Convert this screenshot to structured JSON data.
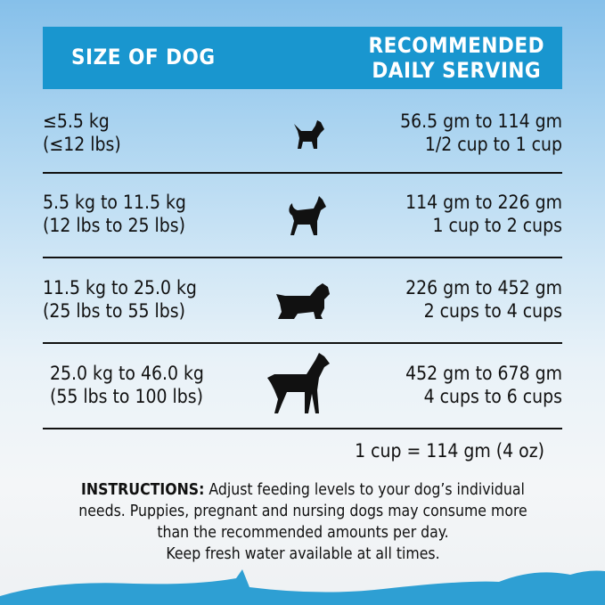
{
  "header": {
    "size_label": "SIZE OF DOG",
    "serving_line1": "RECOMMENDED",
    "serving_line2": "DAILY SERVING"
  },
  "rows": [
    {
      "kg": "≤5.5 kg",
      "lbs": "(≤12 lbs)",
      "grams": "56.5 gm to 114 gm",
      "cups": "1/2  cup to 1 cup",
      "icon": "small-terrier-dog-icon"
    },
    {
      "kg": "5.5 kg to 11.5 kg",
      "lbs": "(12 lbs to 25 lbs)",
      "grams": "114 gm to 226 gm",
      "cups": "1 cup to 2 cups",
      "icon": "husky-dog-icon"
    },
    {
      "kg": "11.5 kg to 25.0 kg",
      "lbs": "(25 lbs to 55 lbs)",
      "grams": "226 gm to 452 gm",
      "cups": "2 cups to 4 cups",
      "icon": "spaniel-dog-icon"
    },
    {
      "kg": "25.0 kg to 46.0 kg",
      "lbs": "(55 lbs to 100 lbs)",
      "grams": "452 gm to 678 gm",
      "cups": "4 cups to 6 cups",
      "icon": "great-dane-dog-icon"
    }
  ],
  "conversion": "1 cup = 114 gm (4 oz)",
  "instructions": {
    "label": "INSTRUCTIONS:",
    "line1": " Adjust feeding levels to your dog’s individual",
    "line2": "needs. Puppies, pregnant and nursing dogs may consume more",
    "line3": "than the recommended amounts per day.",
    "line4": "Keep fresh water available at all times."
  },
  "colors": {
    "header_bg": "#1996cf",
    "wave": "#2e9fd3"
  }
}
